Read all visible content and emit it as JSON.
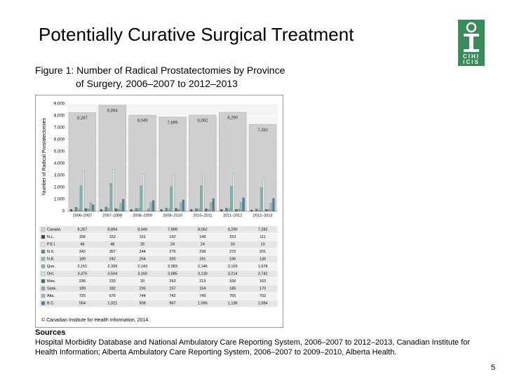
{
  "slide_title": "Potentially Curative Surgical Treatment",
  "figure_caption": [
    "Figure 1:  Number of Radical Prostatectomies by Province",
    "of Surgery, 2006–2007 to 2012–2013"
  ],
  "logo_text": [
    "CIHI",
    "ICIS"
  ],
  "chart_data": {
    "type": "bar",
    "y_axis_label": "Number of Radical Prostatectomies",
    "categories": [
      "2006–2007",
      "2007–2008",
      "2008–2009",
      "2009–2010",
      "2010–2011",
      "2011–2012",
      "2012–2013"
    ],
    "ylim": [
      0,
      9000
    ],
    "yticks": [
      0,
      {
        "value": 1000,
        "label": "1,000"
      },
      {
        "value": 2000,
        "label": "2,000"
      },
      {
        "value": 3000,
        "label": "3,000"
      },
      {
        "value": 4000,
        "label": "4,000"
      },
      {
        "value": 5000,
        "label": "5,000"
      },
      {
        "value": 6000,
        "label": "6,000"
      },
      {
        "value": 7000,
        "label": "7,000"
      },
      {
        "value": 8000,
        "label": "8,000"
      },
      {
        "value": 9000,
        "label": "9,000"
      }
    ],
    "grid": true,
    "series": [
      {
        "name": "Canada",
        "color": "#cfcfcf",
        "values": [
          8267,
          8894,
          8049,
          7899,
          8062,
          8290,
          7282
        ],
        "value_labels": [
          "8,267",
          "8,894",
          "8,049",
          "7,899",
          "8,062",
          "8,290",
          "7,282"
        ]
      },
      {
        "name": "N.L.",
        "color": "#2f4f4f",
        "values": [
          156,
          152,
          151,
          152,
          149,
          153,
          111
        ]
      },
      {
        "name": "P.E.I.",
        "color": "#e6e6e6",
        "values": [
          46,
          48,
          26,
          24,
          24,
          33,
          13
        ]
      },
      {
        "name": "N.S.",
        "color": "#5a8a8a",
        "values": [
          342,
          357,
          244,
          275,
          238,
          272,
          201
        ]
      },
      {
        "name": "N.B.",
        "color": "#9cb4b4",
        "values": [
          189,
          242,
          254,
          200,
          191,
          196,
          136
        ]
      },
      {
        "name": "Que.",
        "color": "#7fb3b3",
        "values": [
          2151,
          2339,
          2143,
          2083,
          2146,
          2103,
          1978
        ],
        "value_labels": [
          "2,151",
          "2,339",
          "2,143",
          "2,083",
          "2,146",
          "2,103",
          "1,978"
        ]
      },
      {
        "name": "Ont.",
        "color": "#d4e4e4",
        "values": [
          3375,
          3504,
          3160,
          3085,
          3130,
          3214,
          2742
        ],
        "value_labels": [
          "3,375",
          "3,504",
          "3,160",
          "3,085",
          "3,130",
          "3,214",
          "2,742"
        ]
      },
      {
        "name": "Man.",
        "color": "#3c6e6e",
        "values": [
          236,
          233,
          20,
          263,
          213,
          166,
          163
        ]
      },
      {
        "name": "Sask.",
        "color": "#a0a0a0",
        "values": [
          189,
          182,
          200,
          157,
          154,
          185,
          170
        ]
      },
      {
        "name": "Alta.",
        "color": "#8fbcbc",
        "values": [
          725,
          675,
          744,
          742,
          749,
          755,
          702
        ]
      },
      {
        "name": "B.C.",
        "color": "#4f7f9f",
        "values": [
          554,
          1021,
          908,
          967,
          1066,
          1136,
          1084
        ],
        "value_labels": [
          "554",
          "1,021",
          "908",
          "967",
          "1,066",
          "1,136",
          "1,084"
        ]
      }
    ]
  },
  "copyright": "© Canadian Institute for Health Information, 2014.",
  "sources_heading": "Sources",
  "sources_text": "Hospital Morbidity Database and National Ambulatory Care Reporting System, 2006–2007 to 2012–2013, Canadian Institute for Health Information; Alberta Ambulatory Care Reporting System, 2006–2007 to 2009–2010, Alberta Health.",
  "page_number": "5"
}
